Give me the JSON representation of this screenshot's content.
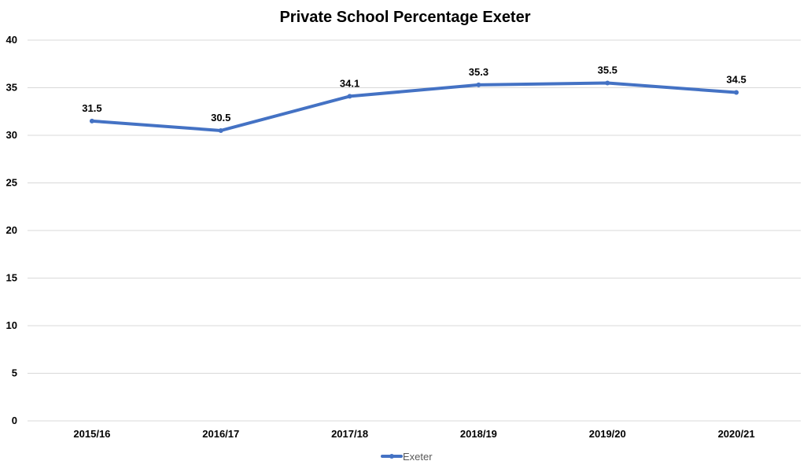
{
  "chart_data": {
    "type": "line",
    "title": "Private School Percentage Exeter",
    "categories": [
      "2015/16",
      "2016/17",
      "2017/18",
      "2018/19",
      "2019/20",
      "2020/21"
    ],
    "series": [
      {
        "name": "Exeter",
        "values": [
          31.5,
          30.5,
          34.1,
          35.3,
          35.5,
          34.5
        ],
        "labels": [
          "31.5",
          "30.5",
          "34.1",
          "35.3",
          "35.5",
          "34.5"
        ],
        "color": "#4472C4"
      }
    ],
    "y_ticks": [
      "0",
      "5",
      "10",
      "15",
      "20",
      "25",
      "30",
      "35",
      "40"
    ],
    "ylim": [
      0,
      40
    ],
    "grid": true,
    "legend_position": "bottom"
  }
}
